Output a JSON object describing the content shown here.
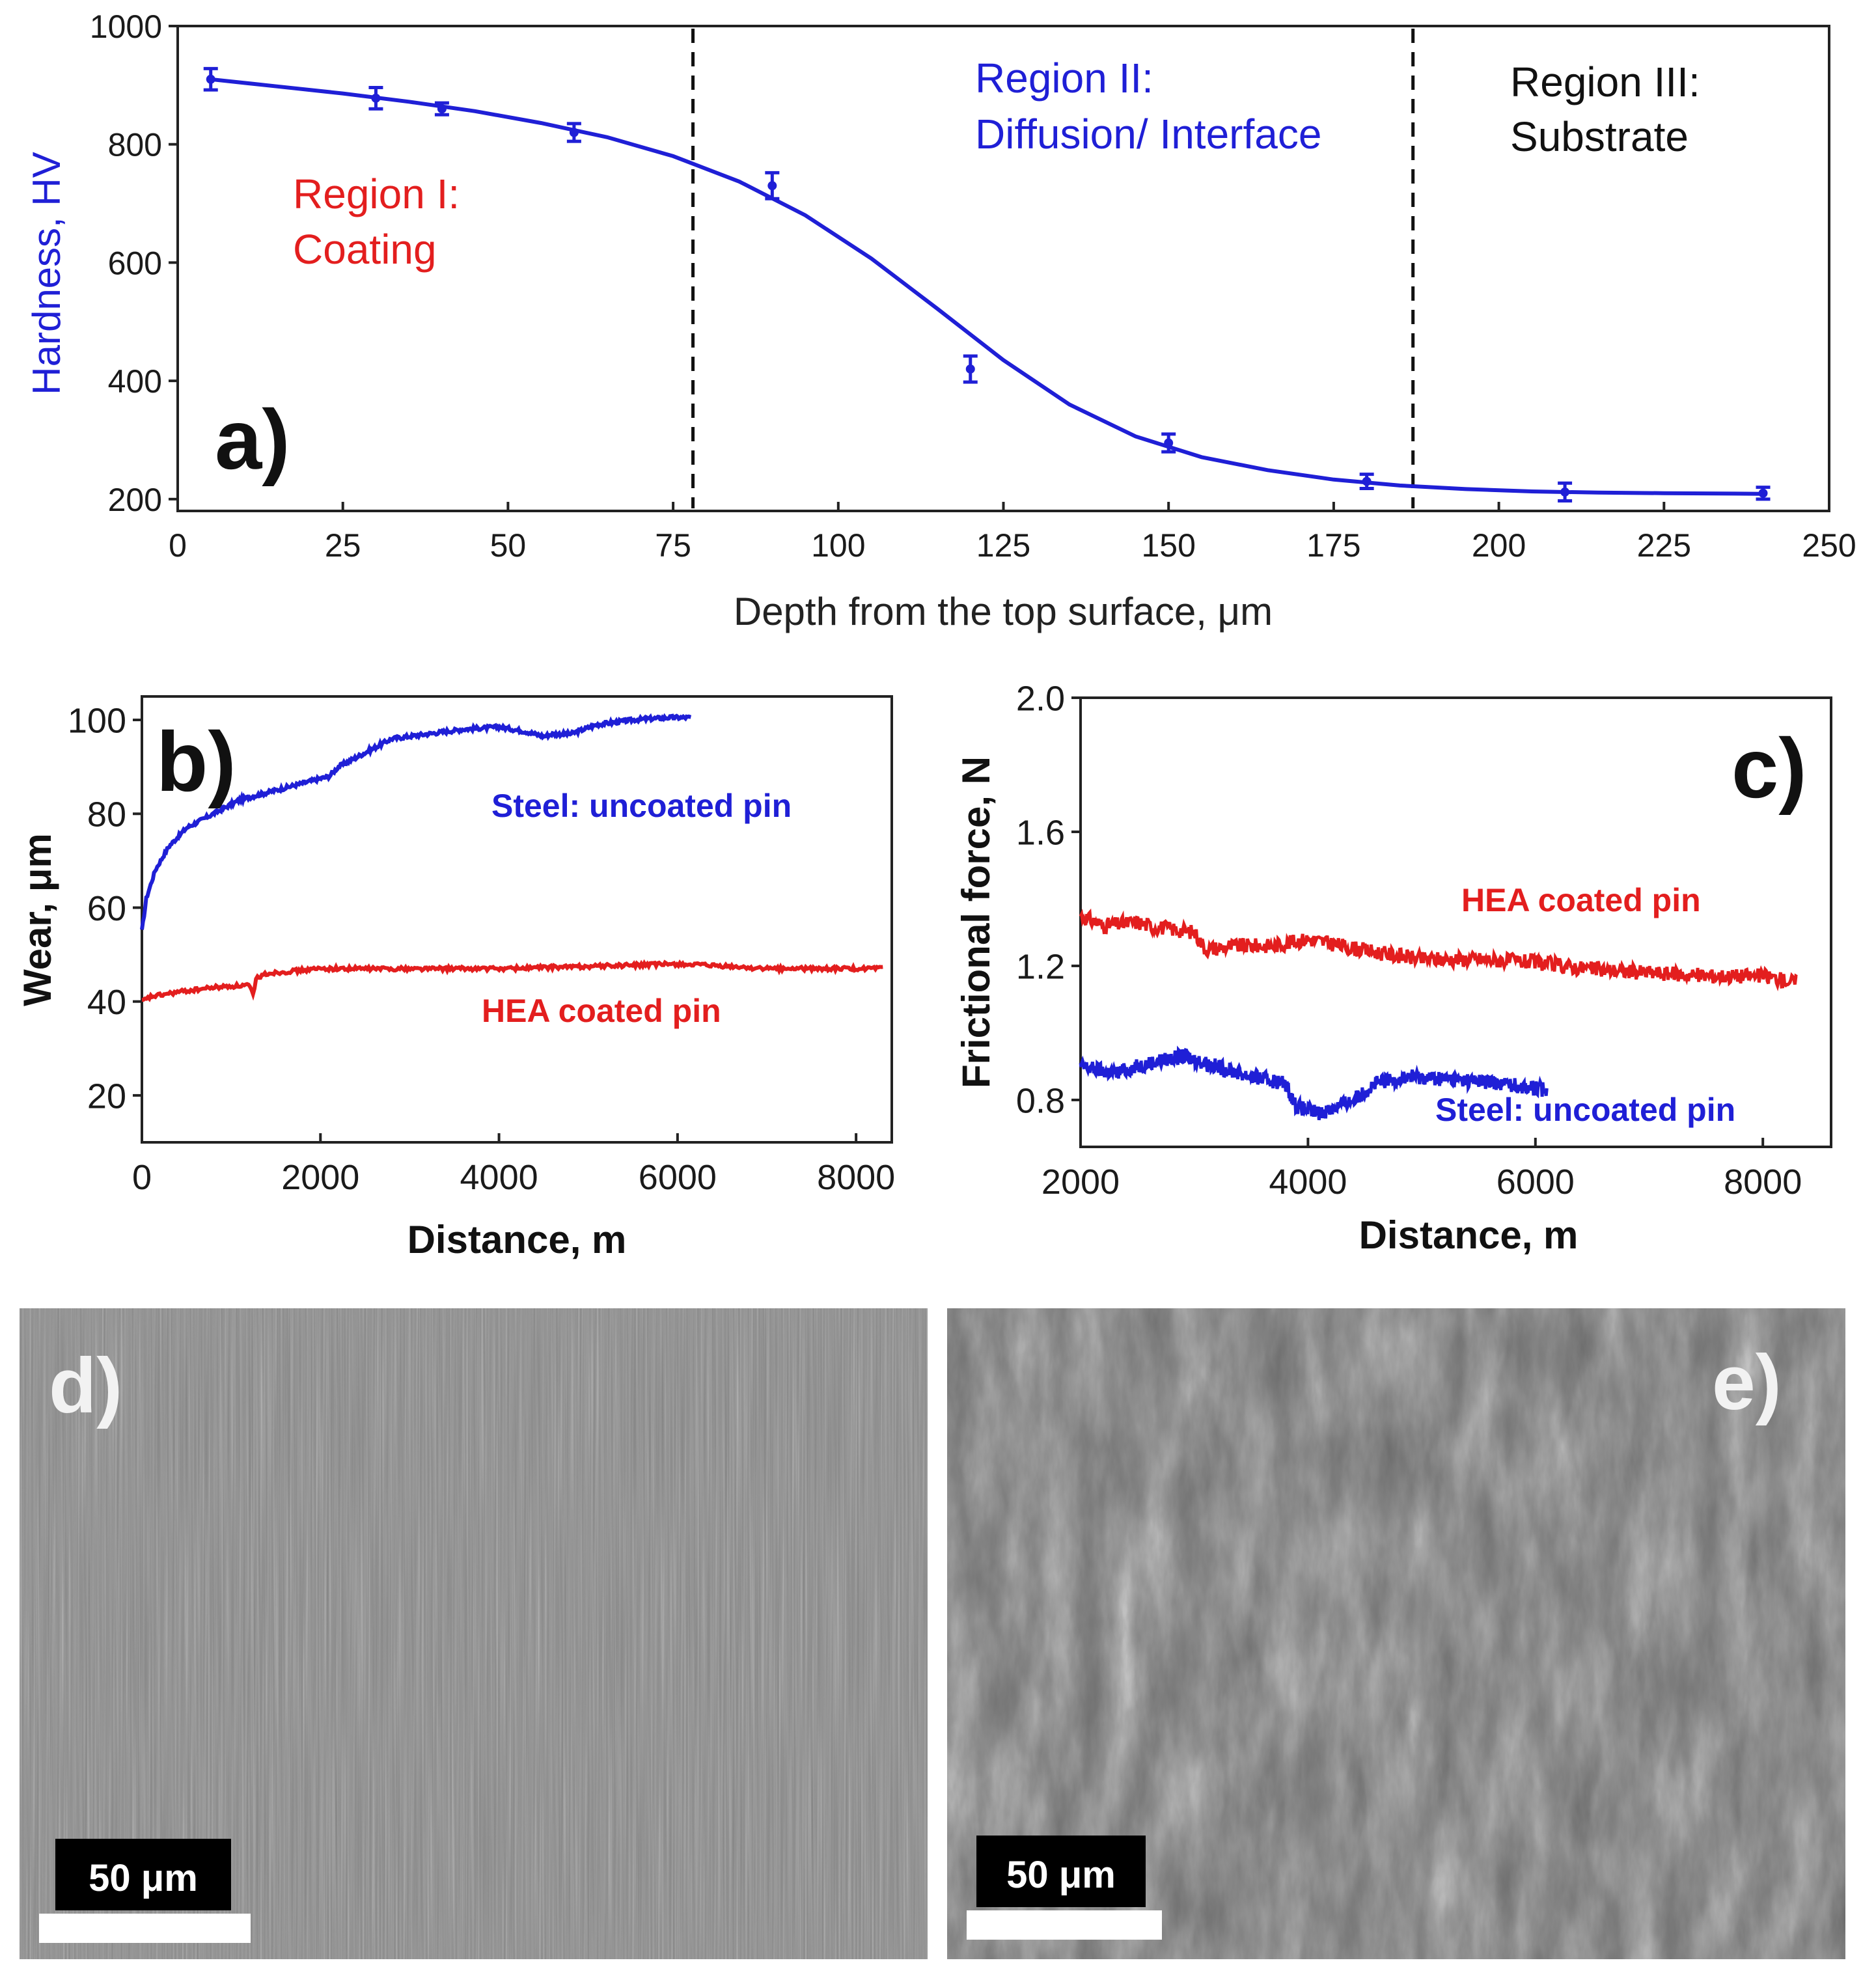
{
  "colors": {
    "blue": "#1f1fd6",
    "red": "#e31e1e",
    "black": "#111111",
    "sem_light": "#9a9a9a",
    "sem_dark": "#4a4a4a"
  },
  "chart_data": [
    {
      "panel": "a)",
      "type": "line",
      "title": "",
      "xlabel": "Depth from the top surface, μm",
      "ylabel": "Hardness, HV",
      "xlim": [
        0,
        250
      ],
      "ylim": [
        180,
        1000
      ],
      "xticks": [
        0,
        25,
        50,
        75,
        100,
        125,
        150,
        175,
        200,
        225,
        250
      ],
      "yticks": [
        200,
        400,
        600,
        800,
        1000
      ],
      "points": [
        {
          "x": 5,
          "y": 910,
          "err": 18
        },
        {
          "x": 30,
          "y": 878,
          "err": 18
        },
        {
          "x": 40,
          "y": 860,
          "err": 10
        },
        {
          "x": 60,
          "y": 820,
          "err": 15
        },
        {
          "x": 90,
          "y": 730,
          "err": 22
        },
        {
          "x": 120,
          "y": 420,
          "err": 22
        },
        {
          "x": 150,
          "y": 295,
          "err": 15
        },
        {
          "x": 180,
          "y": 230,
          "err": 12
        },
        {
          "x": 210,
          "y": 212,
          "err": 15
        },
        {
          "x": 240,
          "y": 210,
          "err": 10
        }
      ],
      "fit_curve": [
        [
          5,
          910
        ],
        [
          15,
          898
        ],
        [
          25,
          886
        ],
        [
          35,
          872
        ],
        [
          45,
          856
        ],
        [
          55,
          836
        ],
        [
          65,
          812
        ],
        [
          75,
          780
        ],
        [
          85,
          737
        ],
        [
          95,
          680
        ],
        [
          105,
          607
        ],
        [
          115,
          522
        ],
        [
          125,
          435
        ],
        [
          135,
          360
        ],
        [
          145,
          306
        ],
        [
          155,
          271
        ],
        [
          165,
          249
        ],
        [
          175,
          233
        ],
        [
          185,
          223
        ],
        [
          195,
          217
        ],
        [
          205,
          213
        ],
        [
          215,
          211
        ],
        [
          225,
          210
        ],
        [
          240,
          209
        ]
      ],
      "region_boundaries": [
        78,
        187
      ],
      "regions": [
        {
          "line1": "Region I:",
          "line2": "Coating"
        },
        {
          "line1": "Region II:",
          "line2": "Diffusion/ Interface"
        },
        {
          "line1": "Region III:",
          "line2": "Substrate"
        }
      ]
    },
    {
      "panel": "b)",
      "type": "line",
      "xlabel": "Distance, m",
      "ylabel": "Wear, μm",
      "xlim": [
        0,
        8400
      ],
      "ylim": [
        10,
        105
      ],
      "xticks": [
        0,
        2000,
        4000,
        6000,
        8000
      ],
      "yticks": [
        20,
        40,
        60,
        80,
        100
      ],
      "series": [
        {
          "name": "Steel: uncoated pin",
          "color": "blue",
          "x": [
            0,
            50,
            150,
            300,
            500,
            800,
            1100,
            1500,
            1900,
            2100,
            2200,
            2500,
            2800,
            3200,
            3600,
            4000,
            4300,
            4500,
            4600,
            4800,
            5100,
            5500,
            5900,
            6150
          ],
          "y": [
            55,
            62,
            68,
            73,
            77,
            80,
            83,
            85,
            87,
            88,
            90,
            93,
            96,
            97,
            98,
            98.5,
            97.5,
            96.5,
            97,
            97,
            99,
            100,
            100.5,
            100.5
          ]
        },
        {
          "name": "HEA coated pin",
          "color": "red",
          "x": [
            0,
            100,
            400,
            800,
            1200,
            1250,
            1280,
            1400,
            2000,
            3000,
            4000,
            5000,
            6000,
            7000,
            8000,
            8300
          ],
          "y": [
            40,
            41,
            42,
            43,
            43.5,
            41,
            45,
            46,
            47,
            47,
            47,
            47.5,
            48,
            47,
            47,
            47
          ]
        }
      ]
    },
    {
      "panel": "c)",
      "type": "line",
      "xlabel": "Distance, m",
      "ylabel": "Frictional force, N",
      "xlim": [
        2000,
        8600
      ],
      "ylim": [
        0.66,
        2.0
      ],
      "xticks": [
        2000,
        4000,
        6000,
        8000
      ],
      "yticks": [
        0.8,
        1.2,
        1.6,
        2.0
      ],
      "series": [
        {
          "name": "HEA coated pin",
          "color": "red",
          "x": [
            2000,
            2200,
            2500,
            2600,
            2800,
            3000,
            3100,
            3400,
            3700,
            4000,
            4300,
            4600,
            5000,
            5500,
            6000,
            6500,
            7000,
            7500,
            8000,
            8300
          ],
          "y": [
            1.35,
            1.32,
            1.33,
            1.32,
            1.31,
            1.3,
            1.25,
            1.26,
            1.26,
            1.28,
            1.26,
            1.24,
            1.22,
            1.22,
            1.21,
            1.19,
            1.18,
            1.17,
            1.17,
            1.15
          ]
        },
        {
          "name": "Steel: uncoated pin",
          "color": "blue",
          "x": [
            2000,
            2300,
            2600,
            2900,
            3200,
            3500,
            3800,
            3900,
            4100,
            4400,
            4600,
            4900,
            5300,
            5700,
            6100
          ],
          "y": [
            0.9,
            0.88,
            0.91,
            0.93,
            0.9,
            0.87,
            0.85,
            0.78,
            0.76,
            0.8,
            0.85,
            0.87,
            0.86,
            0.85,
            0.83
          ]
        }
      ]
    }
  ],
  "panel_d": {
    "label": "d)",
    "scale_bar": "50 μm"
  },
  "panel_e": {
    "label": "e)",
    "scale_bar": "50 μm"
  }
}
